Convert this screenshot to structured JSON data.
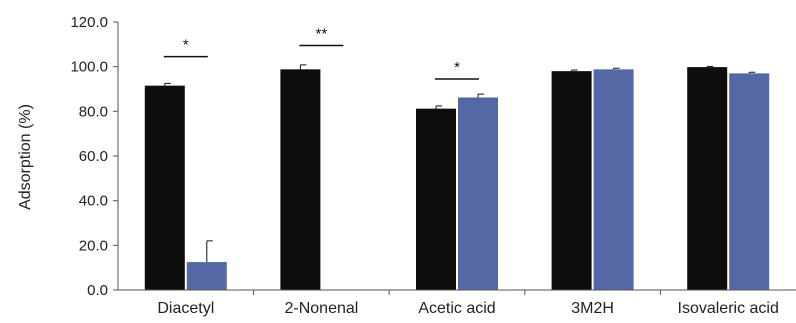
{
  "chart_data": {
    "type": "bar",
    "title": "",
    "xlabel": "",
    "ylabel": "Adsorption (%)",
    "ylim": [
      0,
      120
    ],
    "yticks": [
      "0.0",
      "20.0",
      "40.0",
      "60.0",
      "80.0",
      "100.0",
      "120.0"
    ],
    "ytick_values": [
      0,
      20,
      40,
      60,
      80,
      100,
      120
    ],
    "categories": [
      "Diacetyl",
      "2-Nonenal",
      "Acetic acid",
      "3M2H",
      "Isovaleric acid"
    ],
    "series": [
      {
        "color": "#0d0d0d",
        "values": [
          91.5,
          98.8,
          81.2,
          98.0,
          99.8
        ],
        "errors": [
          1.0,
          2.0,
          1.2,
          0.5,
          0.3
        ]
      },
      {
        "color": "#5468a6",
        "values": [
          12.5,
          null,
          86.2,
          98.8,
          97.0
        ],
        "errors": [
          9.5,
          null,
          1.5,
          0.5,
          0.5
        ]
      }
    ],
    "significance": [
      {
        "category": 0,
        "label": "*",
        "y": 104.5
      },
      {
        "category": 1,
        "label": "**",
        "y": 109.5
      },
      {
        "category": 2,
        "label": "*",
        "y": 94.5
      }
    ],
    "grid": false,
    "legend": "none"
  }
}
